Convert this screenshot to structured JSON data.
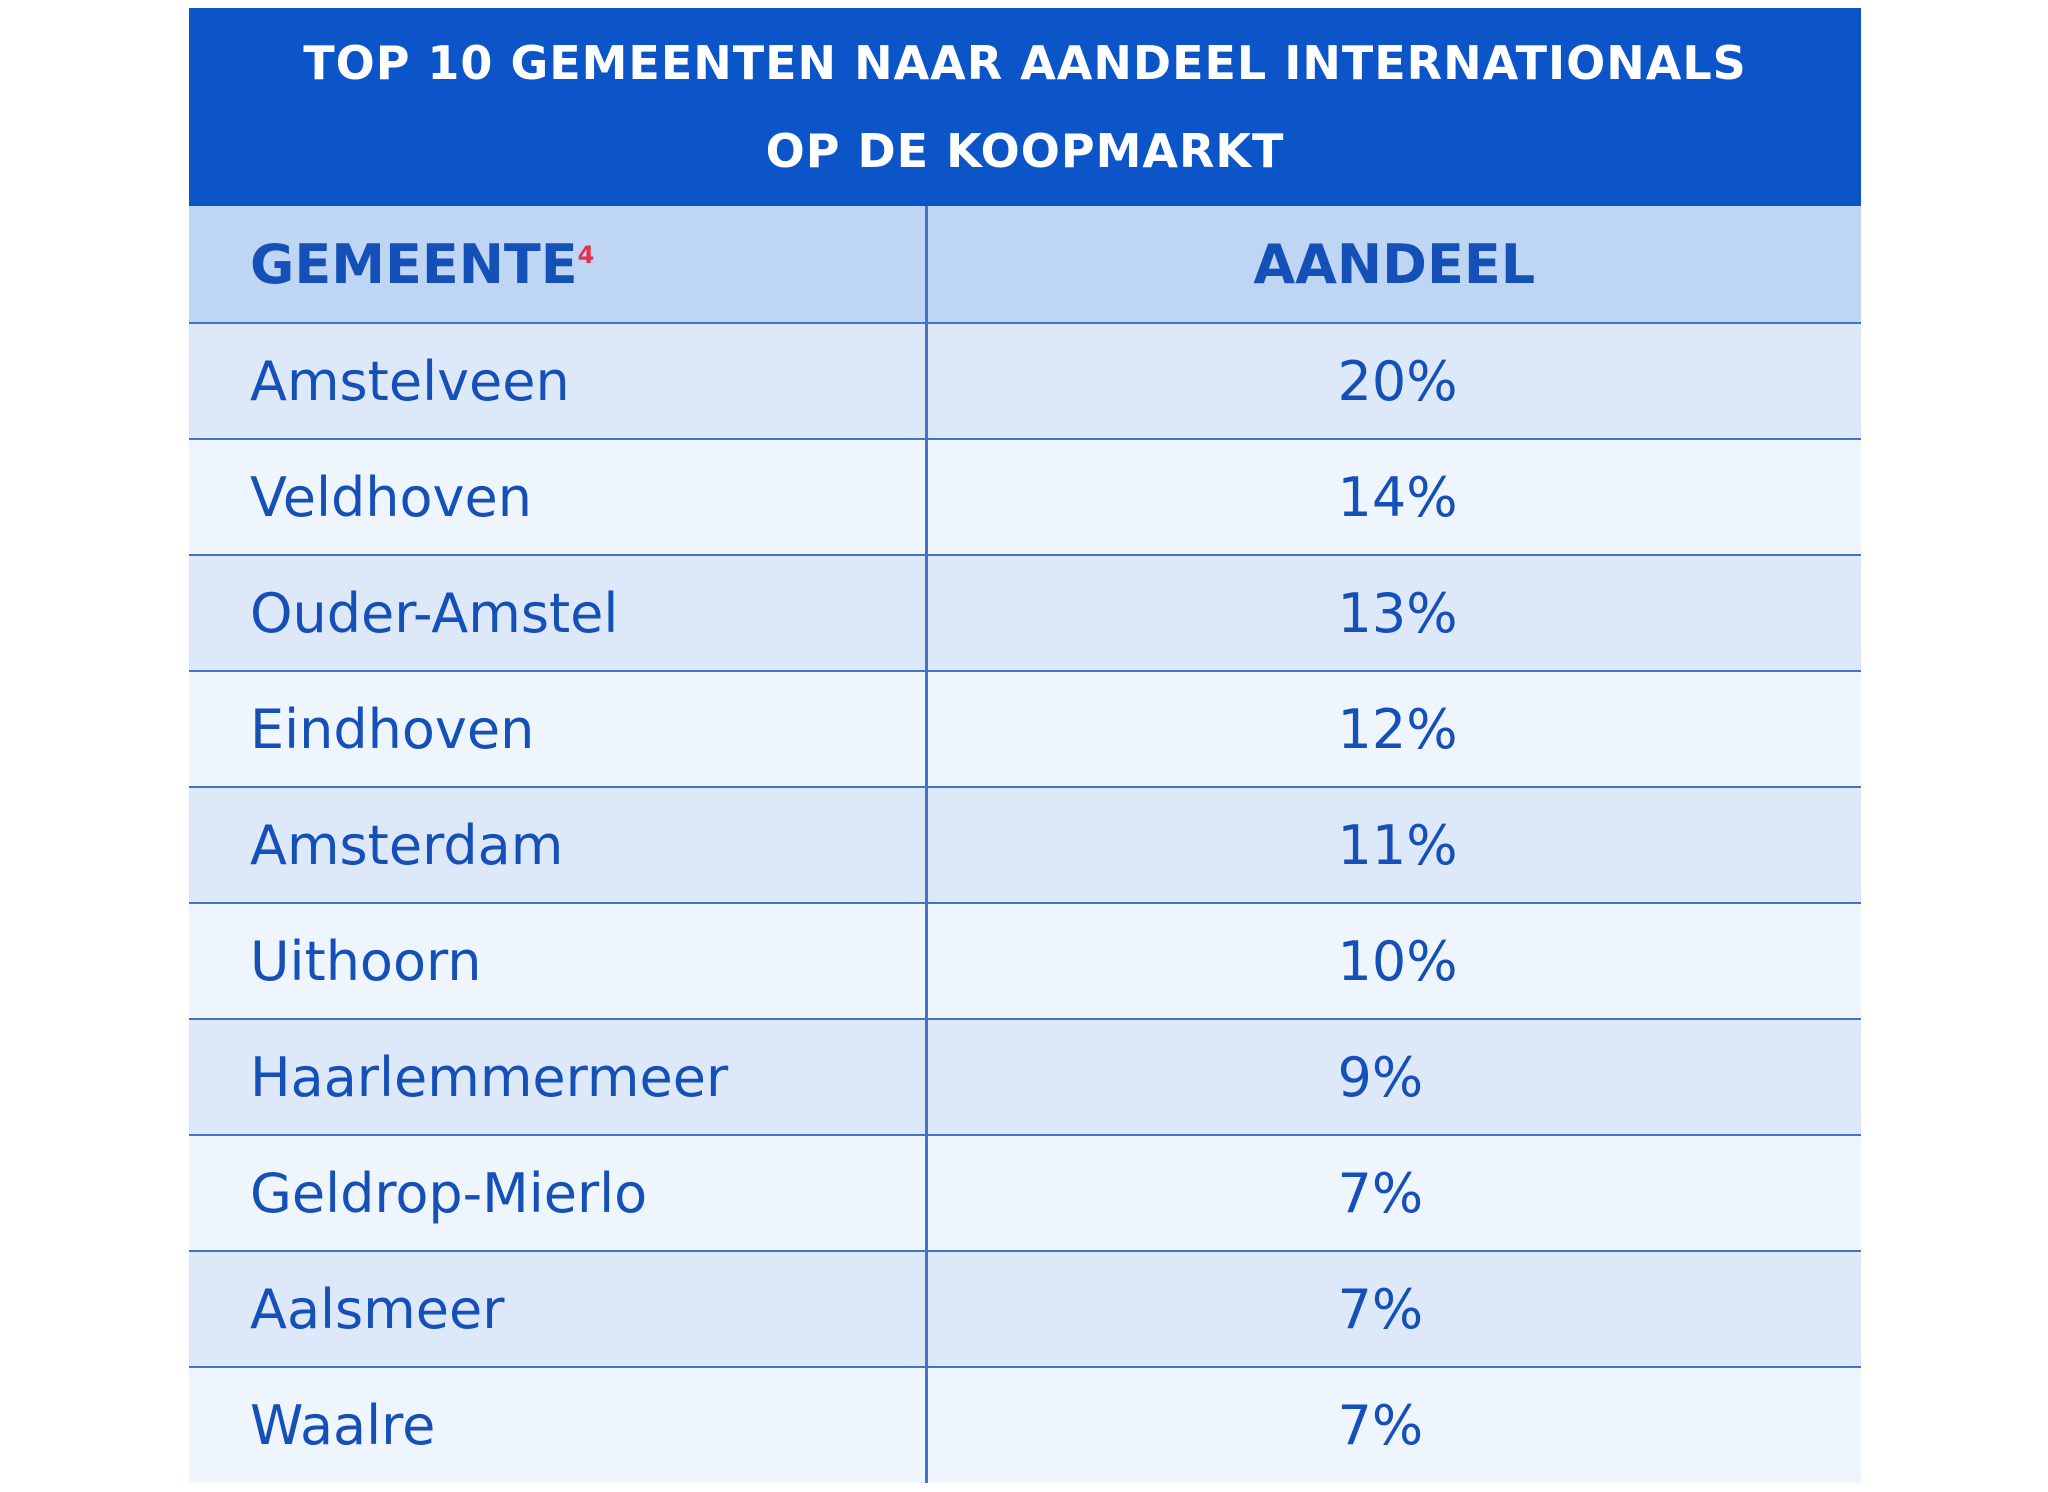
{
  "chart_data": {
    "type": "table",
    "title_lines": [
      "TOP 10 GEMEENTEN NAAR AANDEEL INTERNATIONALS",
      "OP DE KOOPMARKT"
    ],
    "columns": [
      "GEMEENTE",
      "AANDEEL"
    ],
    "column_footnote": "4",
    "rows": [
      {
        "name": "Amstelveen",
        "share": "20%"
      },
      {
        "name": "Veldhoven",
        "share": "14%"
      },
      {
        "name": "Ouder-Amstel",
        "share": "13%"
      },
      {
        "name": "Eindhoven",
        "share": "12%"
      },
      {
        "name": "Amsterdam",
        "share": "11%"
      },
      {
        "name": "Uithoorn",
        "share": "10%"
      },
      {
        "name": "Haarlemmermeer",
        "share": "9%"
      },
      {
        "name": "Geldrop-Mierlo",
        "share": "7%"
      },
      {
        "name": "Aalsmeer",
        "share": "7%"
      },
      {
        "name": "Waalre",
        "share": "7%"
      }
    ]
  },
  "colors": {
    "title_background": "#0b55c9",
    "header_background": "#bfd5f4",
    "row_odd": "#dde8f8",
    "row_even": "#eff5fd",
    "text": "#1450b8",
    "footnote": "#e8304a"
  }
}
